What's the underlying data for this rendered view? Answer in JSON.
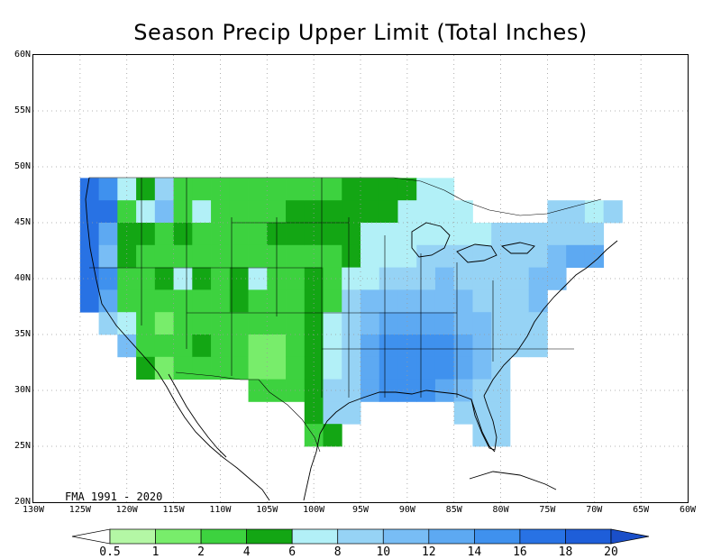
{
  "title": "Season Precip Upper Limit (Total Inches)",
  "period_label": "FMA 1991 - 2020",
  "lat_ticks": [
    "60N",
    "55N",
    "50N",
    "45N",
    "40N",
    "35N",
    "30N",
    "25N",
    "20N"
  ],
  "lon_ticks": [
    "130W",
    "125W",
    "120W",
    "115W",
    "110W",
    "105W",
    "100W",
    "95W",
    "90W",
    "85W",
    "80W",
    "75W",
    "70W",
    "65W",
    "60W"
  ],
  "extent": {
    "lon_min": -130,
    "lon_max": -60,
    "lat_min": 20,
    "lat_max": 60
  },
  "legend": {
    "labels": [
      "0.5",
      "1",
      "2",
      "4",
      "6",
      "8",
      "10",
      "12",
      "14",
      "16",
      "18",
      "20"
    ],
    "colors": [
      "#ffffff",
      "#b4f7a5",
      "#78ed6b",
      "#3dd23f",
      "#13a614",
      "#b2f0f7",
      "#96d3f5",
      "#78bdf5",
      "#5da9f2",
      "#3f91ee",
      "#2872e4",
      "#1e5ed9",
      "#1a4fc9"
    ]
  },
  "colors": {
    "background": "#ffffff",
    "grid": "#9a9a9a",
    "coastline": "#000000"
  },
  "chart_data": {
    "type": "heatmap",
    "title": "Season Precip Upper Limit (Total Inches)",
    "period": "FMA 1991 - 2020",
    "units": "inches",
    "class_edges": [
      0.5,
      1,
      2,
      4,
      6,
      8,
      10,
      12,
      14,
      16,
      18,
      20
    ],
    "cell_size_deg": 2,
    "cells": [
      {
        "lon": -124,
        "lat": 48,
        "c": 10
      },
      {
        "lon": -124,
        "lat": 46,
        "c": 10
      },
      {
        "lon": -124,
        "lat": 44,
        "c": 10
      },
      {
        "lon": -124,
        "lat": 42,
        "c": 10
      },
      {
        "lon": -124,
        "lat": 40,
        "c": 10
      },
      {
        "lon": -124,
        "lat": 38,
        "c": 10
      },
      {
        "lon": -122,
        "lat": 48,
        "c": 9
      },
      {
        "lon": -122,
        "lat": 46,
        "c": 10
      },
      {
        "lon": -122,
        "lat": 44,
        "c": 8
      },
      {
        "lon": -122,
        "lat": 42,
        "c": 7
      },
      {
        "lon": -122,
        "lat": 40,
        "c": 9
      },
      {
        "lon": -122,
        "lat": 38,
        "c": 8
      },
      {
        "lon": -122,
        "lat": 36,
        "c": 6
      },
      {
        "lon": -120,
        "lat": 48,
        "c": 5
      },
      {
        "lon": -120,
        "lat": 46,
        "c": 3
      },
      {
        "lon": -120,
        "lat": 44,
        "c": 4
      },
      {
        "lon": -120,
        "lat": 42,
        "c": 4
      },
      {
        "lon": -120,
        "lat": 40,
        "c": 3
      },
      {
        "lon": -120,
        "lat": 38,
        "c": 3
      },
      {
        "lon": -120,
        "lat": 36,
        "c": 5
      },
      {
        "lon": -120,
        "lat": 34,
        "c": 7
      },
      {
        "lon": -118,
        "lat": 48,
        "c": 4
      },
      {
        "lon": -118,
        "lat": 46,
        "c": 5
      },
      {
        "lon": -118,
        "lat": 44,
        "c": 4
      },
      {
        "lon": -118,
        "lat": 42,
        "c": 3
      },
      {
        "lon": -118,
        "lat": 40,
        "c": 3
      },
      {
        "lon": -118,
        "lat": 38,
        "c": 3
      },
      {
        "lon": -118,
        "lat": 36,
        "c": 3
      },
      {
        "lon": -118,
        "lat": 34,
        "c": 3
      },
      {
        "lon": -118,
        "lat": 32,
        "c": 4
      },
      {
        "lon": -116,
        "lat": 48,
        "c": 6
      },
      {
        "lon": -116,
        "lat": 46,
        "c": 7
      },
      {
        "lon": -116,
        "lat": 44,
        "c": 3
      },
      {
        "lon": -116,
        "lat": 42,
        "c": 3
      },
      {
        "lon": -116,
        "lat": 40,
        "c": 4
      },
      {
        "lon": -116,
        "lat": 38,
        "c": 3
      },
      {
        "lon": -116,
        "lat": 36,
        "c": 2
      },
      {
        "lon": -116,
        "lat": 34,
        "c": 3
      },
      {
        "lon": -116,
        "lat": 32,
        "c": 2
      },
      {
        "lon": -114,
        "lat": 48,
        "c": 3
      },
      {
        "lon": -114,
        "lat": 46,
        "c": 3
      },
      {
        "lon": -114,
        "lat": 44,
        "c": 4
      },
      {
        "lon": -114,
        "lat": 42,
        "c": 3
      },
      {
        "lon": -114,
        "lat": 40,
        "c": 5
      },
      {
        "lon": -114,
        "lat": 38,
        "c": 3
      },
      {
        "lon": -114,
        "lat": 36,
        "c": 3
      },
      {
        "lon": -114,
        "lat": 34,
        "c": 3
      },
      {
        "lon": -114,
        "lat": 32,
        "c": 3
      },
      {
        "lon": -112,
        "lat": 48,
        "c": 3
      },
      {
        "lon": -112,
        "lat": 46,
        "c": 5
      },
      {
        "lon": -112,
        "lat": 44,
        "c": 3
      },
      {
        "lon": -112,
        "lat": 42,
        "c": 3
      },
      {
        "lon": -112,
        "lat": 40,
        "c": 4
      },
      {
        "lon": -112,
        "lat": 38,
        "c": 3
      },
      {
        "lon": -112,
        "lat": 36,
        "c": 3
      },
      {
        "lon": -112,
        "lat": 34,
        "c": 4
      },
      {
        "lon": -112,
        "lat": 32,
        "c": 3
      },
      {
        "lon": -110,
        "lat": 48,
        "c": 3
      },
      {
        "lon": -110,
        "lat": 46,
        "c": 3
      },
      {
        "lon": -110,
        "lat": 44,
        "c": 3
      },
      {
        "lon": -110,
        "lat": 42,
        "c": 3
      },
      {
        "lon": -110,
        "lat": 40,
        "c": 3
      },
      {
        "lon": -110,
        "lat": 38,
        "c": 3
      },
      {
        "lon": -110,
        "lat": 36,
        "c": 3
      },
      {
        "lon": -110,
        "lat": 34,
        "c": 3
      },
      {
        "lon": -110,
        "lat": 32,
        "c": 3
      },
      {
        "lon": -108,
        "lat": 48,
        "c": 3
      },
      {
        "lon": -108,
        "lat": 46,
        "c": 3
      },
      {
        "lon": -108,
        "lat": 44,
        "c": 3
      },
      {
        "lon": -108,
        "lat": 42,
        "c": 3
      },
      {
        "lon": -108,
        "lat": 40,
        "c": 4
      },
      {
        "lon": -108,
        "lat": 38,
        "c": 4
      },
      {
        "lon": -108,
        "lat": 36,
        "c": 3
      },
      {
        "lon": -108,
        "lat": 34,
        "c": 3
      },
      {
        "lon": -108,
        "lat": 32,
        "c": 3
      },
      {
        "lon": -106,
        "lat": 48,
        "c": 3
      },
      {
        "lon": -106,
        "lat": 46,
        "c": 3
      },
      {
        "lon": -106,
        "lat": 44,
        "c": 3
      },
      {
        "lon": -106,
        "lat": 42,
        "c": 3
      },
      {
        "lon": -106,
        "lat": 40,
        "c": 5
      },
      {
        "lon": -106,
        "lat": 38,
        "c": 3
      },
      {
        "lon": -106,
        "lat": 36,
        "c": 3
      },
      {
        "lon": -106,
        "lat": 34,
        "c": 2
      },
      {
        "lon": -106,
        "lat": 32,
        "c": 2
      },
      {
        "lon": -106,
        "lat": 30,
        "c": 3
      },
      {
        "lon": -104,
        "lat": 48,
        "c": 3
      },
      {
        "lon": -104,
        "lat": 46,
        "c": 3
      },
      {
        "lon": -104,
        "lat": 44,
        "c": 4
      },
      {
        "lon": -104,
        "lat": 42,
        "c": 3
      },
      {
        "lon": -104,
        "lat": 40,
        "c": 3
      },
      {
        "lon": -104,
        "lat": 38,
        "c": 3
      },
      {
        "lon": -104,
        "lat": 36,
        "c": 3
      },
      {
        "lon": -104,
        "lat": 34,
        "c": 2
      },
      {
        "lon": -104,
        "lat": 32,
        "c": 2
      },
      {
        "lon": -104,
        "lat": 30,
        "c": 3
      },
      {
        "lon": -102,
        "lat": 48,
        "c": 3
      },
      {
        "lon": -102,
        "lat": 46,
        "c": 4
      },
      {
        "lon": -102,
        "lat": 44,
        "c": 4
      },
      {
        "lon": -102,
        "lat": 42,
        "c": 3
      },
      {
        "lon": -102,
        "lat": 40,
        "c": 3
      },
      {
        "lon": -102,
        "lat": 38,
        "c": 3
      },
      {
        "lon": -102,
        "lat": 36,
        "c": 3
      },
      {
        "lon": -102,
        "lat": 34,
        "c": 3
      },
      {
        "lon": -102,
        "lat": 32,
        "c": 3
      },
      {
        "lon": -102,
        "lat": 30,
        "c": 3
      },
      {
        "lon": -100,
        "lat": 48,
        "c": 3
      },
      {
        "lon": -100,
        "lat": 46,
        "c": 4
      },
      {
        "lon": -100,
        "lat": 44,
        "c": 4
      },
      {
        "lon": -100,
        "lat": 42,
        "c": 3
      },
      {
        "lon": -100,
        "lat": 40,
        "c": 4
      },
      {
        "lon": -100,
        "lat": 38,
        "c": 4
      },
      {
        "lon": -100,
        "lat": 36,
        "c": 4
      },
      {
        "lon": -100,
        "lat": 34,
        "c": 4
      },
      {
        "lon": -100,
        "lat": 32,
        "c": 4
      },
      {
        "lon": -100,
        "lat": 30,
        "c": 4
      },
      {
        "lon": -100,
        "lat": 28,
        "c": 4
      },
      {
        "lon": -100,
        "lat": 26,
        "c": 3
      },
      {
        "lon": -98,
        "lat": 48,
        "c": 3
      },
      {
        "lon": -98,
        "lat": 46,
        "c": 4
      },
      {
        "lon": -98,
        "lat": 44,
        "c": 4
      },
      {
        "lon": -98,
        "lat": 42,
        "c": 3
      },
      {
        "lon": -98,
        "lat": 40,
        "c": 3
      },
      {
        "lon": -98,
        "lat": 38,
        "c": 3
      },
      {
        "lon": -98,
        "lat": 36,
        "c": 5
      },
      {
        "lon": -98,
        "lat": 34,
        "c": 5
      },
      {
        "lon": -98,
        "lat": 32,
        "c": 5
      },
      {
        "lon": -98,
        "lat": 30,
        "c": 6
      },
      {
        "lon": -98,
        "lat": 28,
        "c": 6
      },
      {
        "lon": -98,
        "lat": 26,
        "c": 4
      },
      {
        "lon": -96,
        "lat": 48,
        "c": 4
      },
      {
        "lon": -96,
        "lat": 46,
        "c": 4
      },
      {
        "lon": -96,
        "lat": 44,
        "c": 4
      },
      {
        "lon": -96,
        "lat": 42,
        "c": 4
      },
      {
        "lon": -96,
        "lat": 40,
        "c": 5
      },
      {
        "lon": -96,
        "lat": 38,
        "c": 6
      },
      {
        "lon": -96,
        "lat": 36,
        "c": 6
      },
      {
        "lon": -96,
        "lat": 34,
        "c": 6
      },
      {
        "lon": -96,
        "lat": 32,
        "c": 6
      },
      {
        "lon": -96,
        "lat": 30,
        "c": 6
      },
      {
        "lon": -96,
        "lat": 28,
        "c": 6
      },
      {
        "lon": -94,
        "lat": 48,
        "c": 4
      },
      {
        "lon": -94,
        "lat": 46,
        "c": 4
      },
      {
        "lon": -94,
        "lat": 44,
        "c": 5
      },
      {
        "lon": -94,
        "lat": 42,
        "c": 5
      },
      {
        "lon": -94,
        "lat": 40,
        "c": 5
      },
      {
        "lon": -94,
        "lat": 38,
        "c": 7
      },
      {
        "lon": -94,
        "lat": 36,
        "c": 7
      },
      {
        "lon": -94,
        "lat": 34,
        "c": 8
      },
      {
        "lon": -94,
        "lat": 32,
        "c": 8
      },
      {
        "lon": -94,
        "lat": 30,
        "c": 8
      },
      {
        "lon": -92,
        "lat": 48,
        "c": 4
      },
      {
        "lon": -92,
        "lat": 46,
        "c": 4
      },
      {
        "lon": -92,
        "lat": 44,
        "c": 5
      },
      {
        "lon": -92,
        "lat": 42,
        "c": 5
      },
      {
        "lon": -92,
        "lat": 40,
        "c": 6
      },
      {
        "lon": -92,
        "lat": 38,
        "c": 7
      },
      {
        "lon": -92,
        "lat": 36,
        "c": 8
      },
      {
        "lon": -92,
        "lat": 34,
        "c": 9
      },
      {
        "lon": -92,
        "lat": 32,
        "c": 9
      },
      {
        "lon": -92,
        "lat": 30,
        "c": 9
      },
      {
        "lon": -90,
        "lat": 48,
        "c": 4
      },
      {
        "lon": -90,
        "lat": 46,
        "c": 5
      },
      {
        "lon": -90,
        "lat": 44,
        "c": 5
      },
      {
        "lon": -90,
        "lat": 42,
        "c": 5
      },
      {
        "lon": -90,
        "lat": 40,
        "c": 6
      },
      {
        "lon": -90,
        "lat": 38,
        "c": 7
      },
      {
        "lon": -90,
        "lat": 36,
        "c": 8
      },
      {
        "lon": -90,
        "lat": 34,
        "c": 9
      },
      {
        "lon": -90,
        "lat": 32,
        "c": 9
      },
      {
        "lon": -90,
        "lat": 30,
        "c": 9
      },
      {
        "lon": -88,
        "lat": 48,
        "c": 5
      },
      {
        "lon": -88,
        "lat": 46,
        "c": 5
      },
      {
        "lon": -88,
        "lat": 44,
        "c": 5
      },
      {
        "lon": -88,
        "lat": 42,
        "c": 6
      },
      {
        "lon": -88,
        "lat": 40,
        "c": 6
      },
      {
        "lon": -88,
        "lat": 38,
        "c": 7
      },
      {
        "lon": -88,
        "lat": 36,
        "c": 8
      },
      {
        "lon": -88,
        "lat": 34,
        "c": 9
      },
      {
        "lon": -88,
        "lat": 32,
        "c": 9
      },
      {
        "lon": -88,
        "lat": 30,
        "c": 9
      },
      {
        "lon": -86,
        "lat": 48,
        "c": 5
      },
      {
        "lon": -86,
        "lat": 46,
        "c": 5
      },
      {
        "lon": -86,
        "lat": 44,
        "c": 5
      },
      {
        "lon": -86,
        "lat": 42,
        "c": 6
      },
      {
        "lon": -86,
        "lat": 40,
        "c": 7
      },
      {
        "lon": -86,
        "lat": 38,
        "c": 7
      },
      {
        "lon": -86,
        "lat": 36,
        "c": 8
      },
      {
        "lon": -86,
        "lat": 34,
        "c": 9
      },
      {
        "lon": -86,
        "lat": 32,
        "c": 9
      },
      {
        "lon": -86,
        "lat": 30,
        "c": 8
      },
      {
        "lon": -84,
        "lat": 46,
        "c": 5
      },
      {
        "lon": -84,
        "lat": 44,
        "c": 5
      },
      {
        "lon": -84,
        "lat": 42,
        "c": 6
      },
      {
        "lon": -84,
        "lat": 40,
        "c": 6
      },
      {
        "lon": -84,
        "lat": 38,
        "c": 7
      },
      {
        "lon": -84,
        "lat": 36,
        "c": 7
      },
      {
        "lon": -84,
        "lat": 34,
        "c": 8
      },
      {
        "lon": -84,
        "lat": 32,
        "c": 8
      },
      {
        "lon": -84,
        "lat": 30,
        "c": 7
      },
      {
        "lon": -84,
        "lat": 28,
        "c": 6
      },
      {
        "lon": -82,
        "lat": 44,
        "c": 5
      },
      {
        "lon": -82,
        "lat": 42,
        "c": 6
      },
      {
        "lon": -82,
        "lat": 40,
        "c": 6
      },
      {
        "lon": -82,
        "lat": 38,
        "c": 6
      },
      {
        "lon": -82,
        "lat": 36,
        "c": 7
      },
      {
        "lon": -82,
        "lat": 34,
        "c": 7
      },
      {
        "lon": -82,
        "lat": 32,
        "c": 7
      },
      {
        "lon": -82,
        "lat": 30,
        "c": 6
      },
      {
        "lon": -82,
        "lat": 28,
        "c": 6
      },
      {
        "lon": -82,
        "lat": 26,
        "c": 6
      },
      {
        "lon": -80,
        "lat": 44,
        "c": 6
      },
      {
        "lon": -80,
        "lat": 42,
        "c": 6
      },
      {
        "lon": -80,
        "lat": 40,
        "c": 6
      },
      {
        "lon": -80,
        "lat": 38,
        "c": 6
      },
      {
        "lon": -80,
        "lat": 36,
        "c": 6
      },
      {
        "lon": -80,
        "lat": 34,
        "c": 6
      },
      {
        "lon": -80,
        "lat": 32,
        "c": 6
      },
      {
        "lon": -80,
        "lat": 30,
        "c": 6
      },
      {
        "lon": -80,
        "lat": 28,
        "c": 6
      },
      {
        "lon": -80,
        "lat": 26,
        "c": 6
      },
      {
        "lon": -78,
        "lat": 44,
        "c": 6
      },
      {
        "lon": -78,
        "lat": 42,
        "c": 6
      },
      {
        "lon": -78,
        "lat": 40,
        "c": 6
      },
      {
        "lon": -78,
        "lat": 38,
        "c": 6
      },
      {
        "lon": -78,
        "lat": 36,
        "c": 6
      },
      {
        "lon": -78,
        "lat": 34,
        "c": 6
      },
      {
        "lon": -76,
        "lat": 44,
        "c": 6
      },
      {
        "lon": -76,
        "lat": 42,
        "c": 6
      },
      {
        "lon": -76,
        "lat": 40,
        "c": 7
      },
      {
        "lon": -76,
        "lat": 38,
        "c": 7
      },
      {
        "lon": -76,
        "lat": 36,
        "c": 6
      },
      {
        "lon": -76,
        "lat": 34,
        "c": 6
      },
      {
        "lon": -74,
        "lat": 46,
        "c": 6
      },
      {
        "lon": -74,
        "lat": 44,
        "c": 6
      },
      {
        "lon": -74,
        "lat": 42,
        "c": 7
      },
      {
        "lon": -74,
        "lat": 40,
        "c": 7
      },
      {
        "lon": -72,
        "lat": 46,
        "c": 6
      },
      {
        "lon": -72,
        "lat": 44,
        "c": 6
      },
      {
        "lon": -72,
        "lat": 42,
        "c": 8
      },
      {
        "lon": -70,
        "lat": 46,
        "c": 5
      },
      {
        "lon": -70,
        "lat": 44,
        "c": 6
      },
      {
        "lon": -70,
        "lat": 42,
        "c": 8
      },
      {
        "lon": -68,
        "lat": 46,
        "c": 6
      }
    ]
  }
}
